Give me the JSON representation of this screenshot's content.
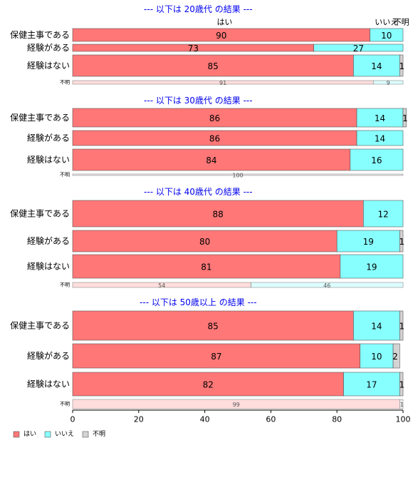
{
  "chart_data": {
    "type": "bar",
    "orientation": "horizontal",
    "stacked": true,
    "xlim": [
      0,
      100
    ],
    "x_ticks": [
      "0",
      "20",
      "40",
      "60",
      "80",
      "100"
    ],
    "top_labels": [
      "はい",
      "いいえ",
      "不明"
    ],
    "legend": {
      "placement": "bottom-left",
      "items": [
        {
          "name": "はい",
          "color": "#ff7777"
        },
        {
          "name": "いいえ",
          "color": "#88ffff"
        },
        {
          "name": "不明",
          "color": "#d3d3d3"
        }
      ]
    },
    "small_row_colors": [
      "#ffdddd",
      "#ddffff",
      "#eeeeee"
    ],
    "title_color": "#0000ee",
    "panels": [
      {
        "title": "--- 以下は 20歳代 の結果 ---",
        "rows": [
          {
            "label": "保健主事である",
            "values": [
              90,
              10,
              0
            ],
            "value_labels": [
              "90",
              "10",
              ""
            ]
          },
          {
            "label": "経験がある",
            "values": [
              73,
              27,
              0
            ],
            "value_labels": [
              "73",
              "27",
              ""
            ]
          },
          {
            "label": "経験はない",
            "values": [
              85,
              14,
              1
            ],
            "value_labels": [
              "85",
              "14",
              "1"
            ]
          }
        ],
        "unknown_row": {
          "label": "不明",
          "values": [
            91,
            9,
            0
          ],
          "value_labels": [
            "91",
            "9",
            ""
          ]
        }
      },
      {
        "title": "--- 以下は 30歳代 の結果 ---",
        "rows": [
          {
            "label": "保健主事である",
            "values": [
              86,
              14,
              1
            ],
            "value_labels": [
              "86",
              "14",
              "1"
            ]
          },
          {
            "label": "経験がある",
            "values": [
              86,
              14,
              0
            ],
            "value_labels": [
              "86",
              "14",
              ""
            ]
          },
          {
            "label": "経験はない",
            "values": [
              84,
              16,
              0
            ],
            "value_labels": [
              "84",
              "16",
              ""
            ]
          }
        ],
        "unknown_row": {
          "label": "不明",
          "values": [
            0,
            0,
            100
          ],
          "value_labels": [
            "",
            "",
            "100"
          ]
        }
      },
      {
        "title": "--- 以下は 40歳代 の結果 ---",
        "rows": [
          {
            "label": "保健主事である",
            "values": [
              88,
              12,
              0
            ],
            "value_labels": [
              "88",
              "12",
              ""
            ]
          },
          {
            "label": "経験がある",
            "values": [
              80,
              19,
              1
            ],
            "value_labels": [
              "80",
              "19",
              "1"
            ]
          },
          {
            "label": "経験はない",
            "values": [
              81,
              19,
              0
            ],
            "value_labels": [
              "81",
              "19",
              ""
            ]
          }
        ],
        "unknown_row": {
          "label": "不明",
          "values": [
            54,
            46,
            0
          ],
          "value_labels": [
            "54",
            "46",
            ""
          ]
        }
      },
      {
        "title": "--- 以下は 50歳以上 の結果 ---",
        "rows": [
          {
            "label": "保健主事である",
            "values": [
              85,
              14,
              1
            ],
            "value_labels": [
              "85",
              "14",
              "1"
            ]
          },
          {
            "label": "経験がある",
            "values": [
              87,
              10,
              2
            ],
            "value_labels": [
              "87",
              "10",
              "2"
            ]
          },
          {
            "label": "経験はない",
            "values": [
              82,
              17,
              1
            ],
            "value_labels": [
              "82",
              "17",
              "1"
            ]
          }
        ],
        "unknown_row": {
          "label": "不明",
          "values": [
            99,
            0,
            1
          ],
          "value_labels": [
            "99",
            "",
            "1"
          ]
        }
      }
    ]
  }
}
